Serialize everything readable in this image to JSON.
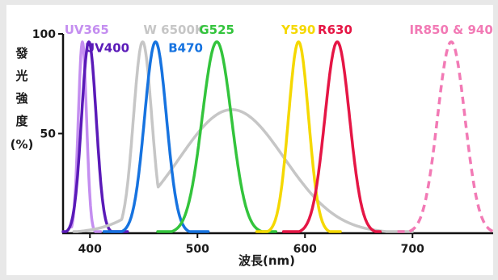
{
  "chart_data": {
    "type": "line",
    "xlabel": "波長(nm)",
    "ylabel_chars": [
      "發",
      "光",
      "強",
      "度",
      "(%)"
    ],
    "xlim": [
      375,
      775
    ],
    "ylim": [
      0,
      100
    ],
    "x_ticks": [
      {
        "value": 400,
        "label": "400"
      },
      {
        "value": 500,
        "label": "500"
      },
      {
        "value": 600,
        "label": "600"
      },
      {
        "value": 700,
        "label": "700"
      }
    ],
    "y_ticks": [
      {
        "value": 100,
        "label": "100"
      },
      {
        "value": 50,
        "label": "50"
      }
    ],
    "grid": false,
    "series": [
      {
        "name": "UV365",
        "color": "#c48ef0",
        "dashed": false,
        "peak": 393,
        "fwhm": 9,
        "amplitude": 96,
        "range": [
          383,
          410
        ],
        "label_pos": [
          397,
          102
        ]
      },
      {
        "name": "UV400",
        "color": "#5a1ab8",
        "dashed": false,
        "peak": 399,
        "fwhm": 16,
        "amplitude": 96,
        "range": [
          375,
          435
        ],
        "label_pos": [
          416,
          93
        ]
      },
      {
        "name": "W 6500K",
        "color": "#c6c6c6",
        "dashed": false,
        "peak": 449,
        "fwhm": 20,
        "amplitude": 96,
        "range": [
          385,
          700
        ],
        "label_pos": [
          478,
          102
        ],
        "bump": {
          "peak": 532,
          "fwhm": 115,
          "amplitude": 62
        }
      },
      {
        "name": "B470",
        "color": "#1673e0",
        "dashed": false,
        "peak": 461,
        "fwhm": 24,
        "amplitude": 96,
        "range": [
          413,
          510
        ],
        "label_pos": [
          489,
          93
        ]
      },
      {
        "name": "G525",
        "color": "#33c43c",
        "dashed": false,
        "peak": 518,
        "fwhm": 32,
        "amplitude": 96,
        "range": [
          463,
          573
        ],
        "label_pos": [
          518,
          102
        ]
      },
      {
        "name": "Y590",
        "color": "#f5d800",
        "dashed": false,
        "peak": 594,
        "fwhm": 22,
        "amplitude": 96,
        "range": [
          555,
          633
        ],
        "label_pos": [
          594,
          102
        ]
      },
      {
        "name": "R630",
        "color": "#e51645",
        "dashed": false,
        "peak": 630,
        "fwhm": 27,
        "amplitude": 96,
        "range": [
          580,
          670
        ],
        "label_pos": [
          628,
          102
        ]
      },
      {
        "name": "IR850 & 940",
        "color": "#f27ab5",
        "dashed": true,
        "peak": 736,
        "fwhm": 30,
        "amplitude": 96,
        "range": [
          686,
          785
        ],
        "label_pos": [
          736,
          102
        ]
      }
    ]
  }
}
